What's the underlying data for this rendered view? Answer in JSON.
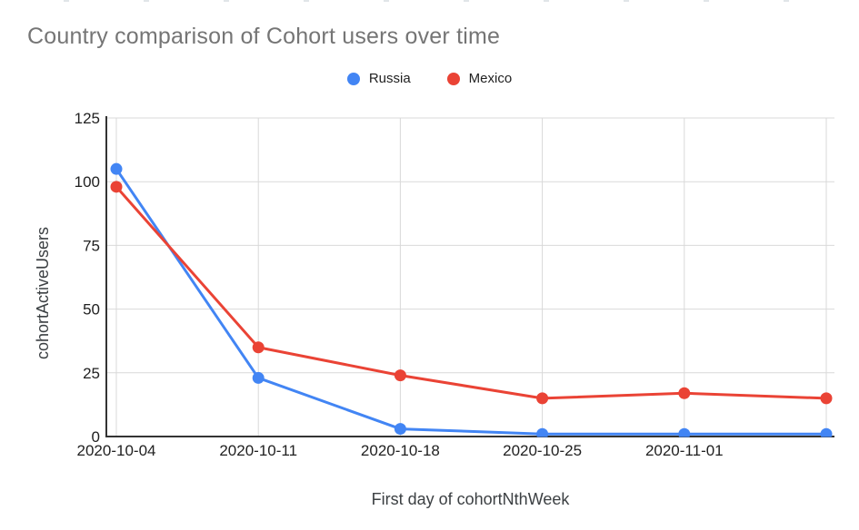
{
  "title": "Country comparison of Cohort users over time",
  "chart_data": {
    "type": "line",
    "title": "Country comparison of Cohort users over time",
    "xlabel": "First day of cohortNthWeek",
    "ylabel": "cohortActiveUsers",
    "x_tick_labels": [
      "2020-10-04",
      "2020-10-11",
      "2020-10-18",
      "2020-10-25",
      "2020-11-01",
      ""
    ],
    "y_ticks": [
      0,
      25,
      50,
      75,
      100,
      125
    ],
    "ylim": [
      0,
      125
    ],
    "grid": true,
    "legend_position": "top-center",
    "series": [
      {
        "name": "Russia",
        "color": "#4285F4",
        "values": [
          105,
          23,
          3,
          1,
          1,
          1
        ]
      },
      {
        "name": "Mexico",
        "color": "#EA4335",
        "values": [
          98,
          35,
          24,
          15,
          17,
          15
        ]
      }
    ]
  }
}
